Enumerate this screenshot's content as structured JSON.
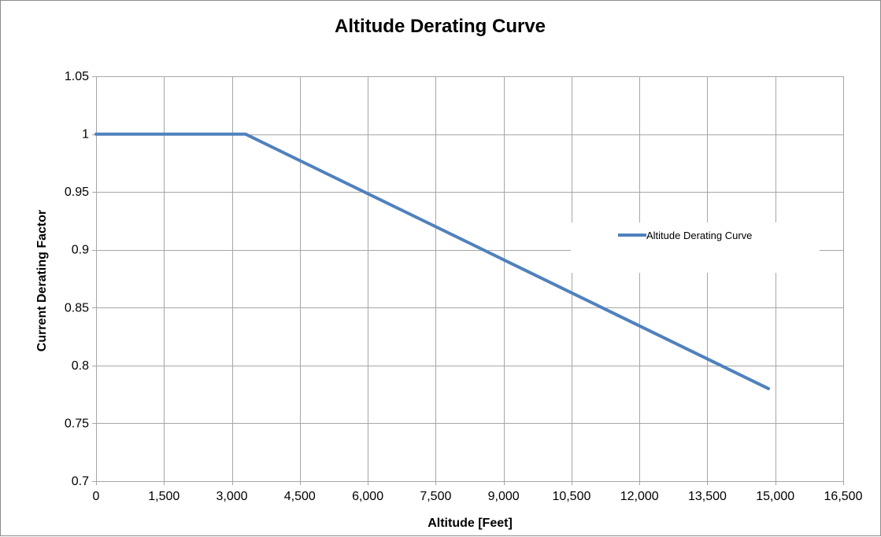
{
  "chart_data": {
    "type": "line",
    "title": "Altitude Derating Curve",
    "xlabel": "Altitude [Feet]",
    "ylabel": "Current Derating Factor",
    "xlim": [
      0,
      16500
    ],
    "ylim": [
      0.7,
      1.05
    ],
    "x_ticks": [
      0,
      1500,
      3000,
      4500,
      6000,
      7500,
      9000,
      10500,
      12000,
      13500,
      15000,
      16500
    ],
    "x_tick_labels": [
      "0",
      "1,500",
      "3,000",
      "4,500",
      "6,000",
      "7,500",
      "9,000",
      "10,500",
      "12,000",
      "13,500",
      "15,000",
      "16,500"
    ],
    "y_ticks": [
      0.7,
      0.75,
      0.8,
      0.85,
      0.9,
      0.95,
      1.0,
      1.05
    ],
    "y_tick_labels": [
      "0.7",
      "0.75",
      "0.8",
      "0.85",
      "0.9",
      "0.95",
      "1",
      "1.05"
    ],
    "grid": true,
    "legend_position": "right",
    "series": [
      {
        "name": "Altitude Derating Curve",
        "color": "#4f81bd",
        "x": [
          0,
          3300,
          14850
        ],
        "y": [
          1.0,
          1.0,
          0.78
        ]
      }
    ]
  }
}
